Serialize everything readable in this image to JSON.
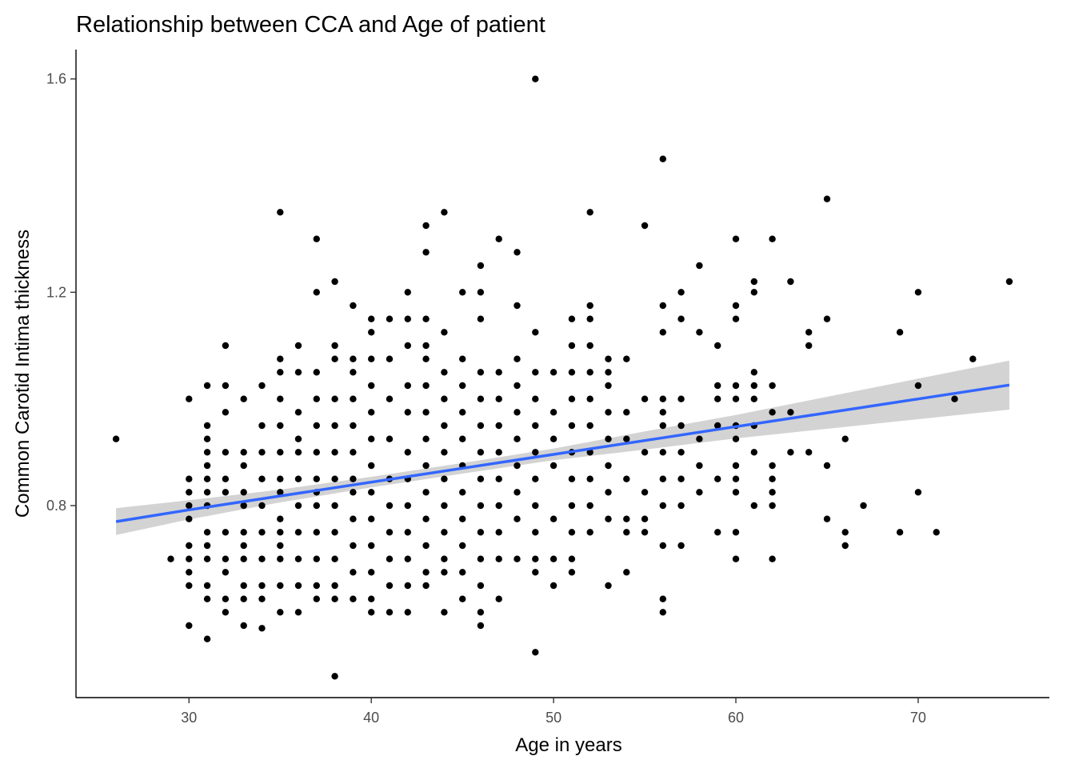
{
  "chart_data": {
    "type": "scatter",
    "title": "Relationship between CCA and Age of patient",
    "xlabel": "Age in years",
    "ylabel": "Common Carotid Intima thickness",
    "xlim": [
      23.8,
      77.2
    ],
    "ylim": [
      0.44,
      1.655
    ],
    "x_ticks": [
      30,
      40,
      50,
      60,
      70
    ],
    "y_ticks": [
      0.8,
      1.2,
      1.6
    ],
    "x_tick_labels": [
      "30",
      "40",
      "50",
      "60",
      "70"
    ],
    "y_tick_labels": [
      "0.8",
      "1.2",
      "1.6"
    ],
    "grid": false,
    "legend": "none",
    "point_color": "#000000",
    "trend": {
      "method": "linear regression with confidence band",
      "line_color": "#3366FF",
      "band_color": "#D3D3D3",
      "x": [
        26,
        30,
        35,
        40,
        45,
        50,
        55,
        60,
        65,
        70,
        75
      ],
      "y": [
        0.77,
        0.792,
        0.818,
        0.844,
        0.87,
        0.896,
        0.922,
        0.948,
        0.974,
        1.0,
        1.026
      ],
      "lower": [
        0.745,
        0.774,
        0.806,
        0.834,
        0.86,
        0.885,
        0.905,
        0.926,
        0.944,
        0.962,
        0.98
      ],
      "upper": [
        0.795,
        0.81,
        0.83,
        0.854,
        0.88,
        0.907,
        0.939,
        0.97,
        1.004,
        1.038,
        1.072
      ]
    },
    "points": [
      [
        26,
        0.925
      ],
      [
        29,
        0.7
      ],
      [
        30,
        1.0
      ],
      [
        30,
        0.85
      ],
      [
        30,
        0.825
      ],
      [
        30,
        0.8
      ],
      [
        30,
        0.775
      ],
      [
        30,
        0.725
      ],
      [
        30,
        0.7
      ],
      [
        30,
        0.675
      ],
      [
        30,
        0.65
      ],
      [
        30,
        0.575
      ],
      [
        31,
        1.025
      ],
      [
        31,
        0.95
      ],
      [
        31,
        0.925
      ],
      [
        31,
        0.9
      ],
      [
        31,
        0.875
      ],
      [
        31,
        0.85
      ],
      [
        31,
        0.825
      ],
      [
        31,
        0.8
      ],
      [
        31,
        0.75
      ],
      [
        31,
        0.725
      ],
      [
        31,
        0.7
      ],
      [
        31,
        0.65
      ],
      [
        31,
        0.625
      ],
      [
        31,
        0.55
      ],
      [
        32,
        1.1
      ],
      [
        32,
        1.025
      ],
      [
        32,
        0.975
      ],
      [
        32,
        0.9
      ],
      [
        32,
        0.85
      ],
      [
        32,
        0.825
      ],
      [
        32,
        0.75
      ],
      [
        32,
        0.7
      ],
      [
        32,
        0.675
      ],
      [
        32,
        0.625
      ],
      [
        32,
        0.6
      ],
      [
        33,
        1.0
      ],
      [
        33,
        0.9
      ],
      [
        33,
        0.875
      ],
      [
        33,
        0.825
      ],
      [
        33,
        0.8
      ],
      [
        33,
        0.75
      ],
      [
        33,
        0.725
      ],
      [
        33,
        0.7
      ],
      [
        33,
        0.65
      ],
      [
        33,
        0.625
      ],
      [
        33,
        0.575
      ],
      [
        34,
        1.025
      ],
      [
        34,
        0.95
      ],
      [
        34,
        0.9
      ],
      [
        34,
        0.85
      ],
      [
        34,
        0.8
      ],
      [
        34,
        0.75
      ],
      [
        34,
        0.7
      ],
      [
        34,
        0.65
      ],
      [
        34,
        0.625
      ],
      [
        34,
        0.57
      ],
      [
        35,
        1.35
      ],
      [
        35,
        1.075
      ],
      [
        35,
        1.05
      ],
      [
        35,
        1.0
      ],
      [
        35,
        0.95
      ],
      [
        35,
        0.9
      ],
      [
        35,
        0.85
      ],
      [
        35,
        0.825
      ],
      [
        35,
        0.775
      ],
      [
        35,
        0.75
      ],
      [
        35,
        0.725
      ],
      [
        35,
        0.7
      ],
      [
        35,
        0.65
      ],
      [
        35,
        0.6
      ],
      [
        36,
        1.1
      ],
      [
        36,
        1.05
      ],
      [
        36,
        0.975
      ],
      [
        36,
        0.925
      ],
      [
        36,
        0.9
      ],
      [
        36,
        0.85
      ],
      [
        36,
        0.8
      ],
      [
        36,
        0.75
      ],
      [
        36,
        0.7
      ],
      [
        36,
        0.65
      ],
      [
        36,
        0.6
      ],
      [
        37,
        1.3
      ],
      [
        37,
        1.2
      ],
      [
        37,
        1.05
      ],
      [
        37,
        1.0
      ],
      [
        37,
        0.95
      ],
      [
        37,
        0.9
      ],
      [
        37,
        0.85
      ],
      [
        37,
        0.825
      ],
      [
        37,
        0.8
      ],
      [
        37,
        0.75
      ],
      [
        37,
        0.7
      ],
      [
        37,
        0.65
      ],
      [
        37,
        0.625
      ],
      [
        38,
        1.22
      ],
      [
        38,
        1.1
      ],
      [
        38,
        1.075
      ],
      [
        38,
        1.0
      ],
      [
        38,
        0.95
      ],
      [
        38,
        0.9
      ],
      [
        38,
        0.85
      ],
      [
        38,
        0.8
      ],
      [
        38,
        0.75
      ],
      [
        38,
        0.7
      ],
      [
        38,
        0.65
      ],
      [
        38,
        0.625
      ],
      [
        38,
        0.48
      ],
      [
        39,
        1.175
      ],
      [
        39,
        1.075
      ],
      [
        39,
        1.05
      ],
      [
        39,
        1.0
      ],
      [
        39,
        0.95
      ],
      [
        39,
        0.9
      ],
      [
        39,
        0.85
      ],
      [
        39,
        0.825
      ],
      [
        39,
        0.775
      ],
      [
        39,
        0.725
      ],
      [
        39,
        0.675
      ],
      [
        39,
        0.625
      ],
      [
        40,
        1.15
      ],
      [
        40,
        1.125
      ],
      [
        40,
        1.075
      ],
      [
        40,
        1.025
      ],
      [
        40,
        0.975
      ],
      [
        40,
        0.925
      ],
      [
        40,
        0.875
      ],
      [
        40,
        0.825
      ],
      [
        40,
        0.775
      ],
      [
        40,
        0.725
      ],
      [
        40,
        0.675
      ],
      [
        40,
        0.625
      ],
      [
        40,
        0.6
      ],
      [
        41,
        1.15
      ],
      [
        41,
        1.075
      ],
      [
        41,
        1.0
      ],
      [
        41,
        0.925
      ],
      [
        41,
        0.85
      ],
      [
        41,
        0.8
      ],
      [
        41,
        0.75
      ],
      [
        41,
        0.7
      ],
      [
        41,
        0.65
      ],
      [
        41,
        0.6
      ],
      [
        42,
        1.2
      ],
      [
        42,
        1.15
      ],
      [
        42,
        1.1
      ],
      [
        42,
        1.025
      ],
      [
        42,
        0.975
      ],
      [
        42,
        0.9
      ],
      [
        42,
        0.85
      ],
      [
        42,
        0.8
      ],
      [
        42,
        0.75
      ],
      [
        42,
        0.7
      ],
      [
        42,
        0.65
      ],
      [
        42,
        0.6
      ],
      [
        43,
        1.325
      ],
      [
        43,
        1.275
      ],
      [
        43,
        1.15
      ],
      [
        43,
        1.1
      ],
      [
        43,
        1.075
      ],
      [
        43,
        1.025
      ],
      [
        43,
        0.975
      ],
      [
        43,
        0.925
      ],
      [
        43,
        0.875
      ],
      [
        43,
        0.825
      ],
      [
        43,
        0.775
      ],
      [
        43,
        0.725
      ],
      [
        43,
        0.675
      ],
      [
        43,
        0.65
      ],
      [
        44,
        1.35
      ],
      [
        44,
        1.125
      ],
      [
        44,
        1.05
      ],
      [
        44,
        1.0
      ],
      [
        44,
        0.95
      ],
      [
        44,
        0.9
      ],
      [
        44,
        0.85
      ],
      [
        44,
        0.8
      ],
      [
        44,
        0.75
      ],
      [
        44,
        0.7
      ],
      [
        44,
        0.675
      ],
      [
        44,
        0.6
      ],
      [
        45,
        1.2
      ],
      [
        45,
        1.075
      ],
      [
        45,
        1.025
      ],
      [
        45,
        0.975
      ],
      [
        45,
        0.925
      ],
      [
        45,
        0.875
      ],
      [
        45,
        0.825
      ],
      [
        45,
        0.775
      ],
      [
        45,
        0.725
      ],
      [
        45,
        0.675
      ],
      [
        45,
        0.625
      ],
      [
        46,
        1.25
      ],
      [
        46,
        1.2
      ],
      [
        46,
        1.15
      ],
      [
        46,
        1.05
      ],
      [
        46,
        1.0
      ],
      [
        46,
        0.95
      ],
      [
        46,
        0.9
      ],
      [
        46,
        0.85
      ],
      [
        46,
        0.8
      ],
      [
        46,
        0.75
      ],
      [
        46,
        0.7
      ],
      [
        46,
        0.65
      ],
      [
        46,
        0.6
      ],
      [
        46,
        0.575
      ],
      [
        47,
        1.3
      ],
      [
        47,
        1.05
      ],
      [
        47,
        1.0
      ],
      [
        47,
        0.95
      ],
      [
        47,
        0.9
      ],
      [
        47,
        0.85
      ],
      [
        47,
        0.8
      ],
      [
        47,
        0.75
      ],
      [
        47,
        0.7
      ],
      [
        47,
        0.625
      ],
      [
        48,
        1.275
      ],
      [
        48,
        1.175
      ],
      [
        48,
        1.075
      ],
      [
        48,
        1.025
      ],
      [
        48,
        0.975
      ],
      [
        48,
        0.925
      ],
      [
        48,
        0.875
      ],
      [
        48,
        0.825
      ],
      [
        48,
        0.775
      ],
      [
        48,
        0.7
      ],
      [
        49,
        1.6
      ],
      [
        49,
        1.125
      ],
      [
        49,
        1.05
      ],
      [
        49,
        1.0
      ],
      [
        49,
        0.95
      ],
      [
        49,
        0.9
      ],
      [
        49,
        0.85
      ],
      [
        49,
        0.8
      ],
      [
        49,
        0.75
      ],
      [
        49,
        0.7
      ],
      [
        49,
        0.675
      ],
      [
        49,
        0.525
      ],
      [
        50,
        1.05
      ],
      [
        50,
        0.975
      ],
      [
        50,
        0.925
      ],
      [
        50,
        0.875
      ],
      [
        50,
        0.775
      ],
      [
        50,
        0.7
      ],
      [
        50,
        0.65
      ],
      [
        51,
        1.15
      ],
      [
        51,
        1.1
      ],
      [
        51,
        1.05
      ],
      [
        51,
        1.0
      ],
      [
        51,
        0.95
      ],
      [
        51,
        0.9
      ],
      [
        51,
        0.85
      ],
      [
        51,
        0.8
      ],
      [
        51,
        0.75
      ],
      [
        51,
        0.7
      ],
      [
        51,
        0.675
      ],
      [
        52,
        1.35
      ],
      [
        52,
        1.175
      ],
      [
        52,
        1.15
      ],
      [
        52,
        1.1
      ],
      [
        52,
        1.05
      ],
      [
        52,
        1.0
      ],
      [
        52,
        0.95
      ],
      [
        52,
        0.9
      ],
      [
        52,
        0.85
      ],
      [
        52,
        0.8
      ],
      [
        52,
        0.75
      ],
      [
        53,
        1.075
      ],
      [
        53,
        1.05
      ],
      [
        53,
        1.025
      ],
      [
        53,
        0.975
      ],
      [
        53,
        0.925
      ],
      [
        53,
        0.875
      ],
      [
        53,
        0.825
      ],
      [
        53,
        0.775
      ],
      [
        53,
        0.65
      ],
      [
        54,
        1.075
      ],
      [
        54,
        0.975
      ],
      [
        54,
        0.925
      ],
      [
        54,
        0.85
      ],
      [
        54,
        0.775
      ],
      [
        54,
        0.75
      ],
      [
        54,
        0.675
      ],
      [
        55,
        1.325
      ],
      [
        55,
        1.0
      ],
      [
        55,
        0.9
      ],
      [
        55,
        0.825
      ],
      [
        55,
        0.775
      ],
      [
        55,
        0.75
      ],
      [
        56,
        1.45
      ],
      [
        56,
        1.175
      ],
      [
        56,
        1.125
      ],
      [
        56,
        1.0
      ],
      [
        56,
        0.975
      ],
      [
        56,
        0.95
      ],
      [
        56,
        0.9
      ],
      [
        56,
        0.85
      ],
      [
        56,
        0.8
      ],
      [
        56,
        0.725
      ],
      [
        56,
        0.625
      ],
      [
        56,
        0.6
      ],
      [
        57,
        1.2
      ],
      [
        57,
        1.15
      ],
      [
        57,
        1.0
      ],
      [
        57,
        0.95
      ],
      [
        57,
        0.9
      ],
      [
        57,
        0.85
      ],
      [
        57,
        0.8
      ],
      [
        57,
        0.725
      ],
      [
        58,
        1.25
      ],
      [
        58,
        1.125
      ],
      [
        58,
        0.925
      ],
      [
        58,
        0.875
      ],
      [
        58,
        0.825
      ],
      [
        59,
        1.1
      ],
      [
        59,
        1.025
      ],
      [
        59,
        1.0
      ],
      [
        59,
        0.95
      ],
      [
        59,
        0.85
      ],
      [
        59,
        0.75
      ],
      [
        60,
        1.3
      ],
      [
        60,
        1.175
      ],
      [
        60,
        1.15
      ],
      [
        60,
        1.025
      ],
      [
        60,
        1.0
      ],
      [
        60,
        0.95
      ],
      [
        60,
        0.925
      ],
      [
        60,
        0.875
      ],
      [
        60,
        0.85
      ],
      [
        60,
        0.825
      ],
      [
        60,
        0.75
      ],
      [
        60,
        0.7
      ],
      [
        61,
        1.22
      ],
      [
        61,
        1.2
      ],
      [
        61,
        1.05
      ],
      [
        61,
        1.025
      ],
      [
        61,
        1.0
      ],
      [
        61,
        0.95
      ],
      [
        61,
        0.9
      ],
      [
        61,
        0.8
      ],
      [
        62,
        1.3
      ],
      [
        62,
        1.025
      ],
      [
        62,
        0.975
      ],
      [
        62,
        0.875
      ],
      [
        62,
        0.85
      ],
      [
        62,
        0.825
      ],
      [
        62,
        0.8
      ],
      [
        62,
        0.7
      ],
      [
        63,
        1.22
      ],
      [
        63,
        0.975
      ],
      [
        63,
        0.9
      ],
      [
        64,
        1.125
      ],
      [
        64,
        1.1
      ],
      [
        64,
        0.9
      ],
      [
        65,
        1.375
      ],
      [
        65,
        1.15
      ],
      [
        65,
        0.875
      ],
      [
        65,
        0.775
      ],
      [
        66,
        0.925
      ],
      [
        66,
        0.75
      ],
      [
        66,
        0.725
      ],
      [
        67,
        0.8
      ],
      [
        69,
        1.125
      ],
      [
        69,
        0.75
      ],
      [
        70,
        1.2
      ],
      [
        70,
        1.025
      ],
      [
        70,
        0.825
      ],
      [
        71,
        0.75
      ],
      [
        72,
        1.0
      ],
      [
        73,
        1.075
      ],
      [
        75,
        1.22
      ]
    ]
  }
}
